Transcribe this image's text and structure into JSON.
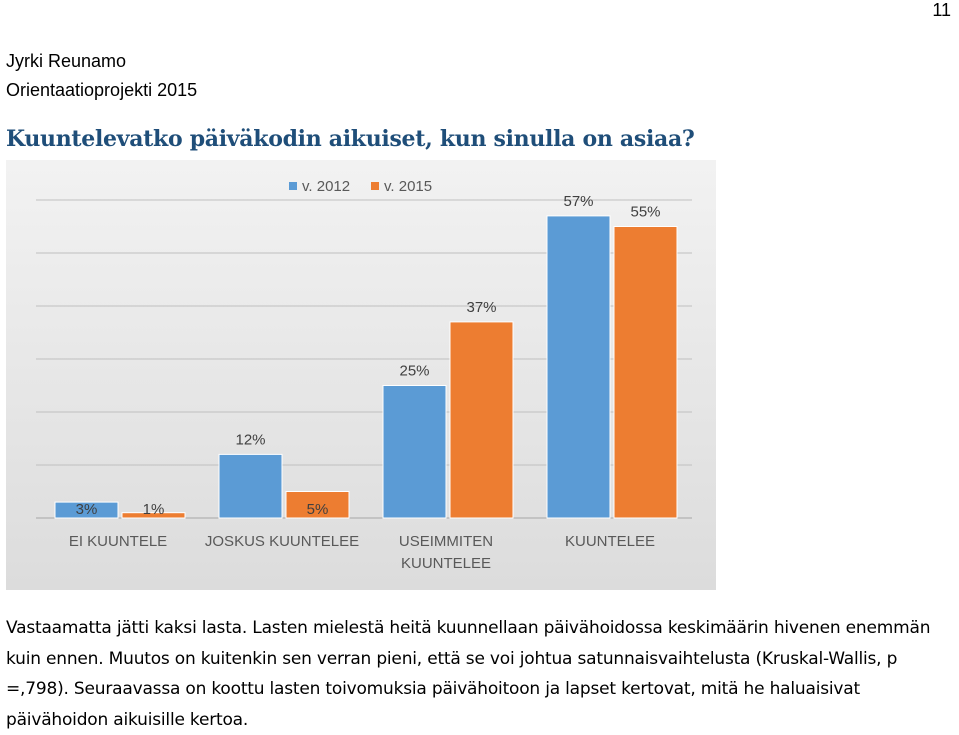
{
  "page": {
    "number": "11",
    "author": "Jyrki Reunamo",
    "project": "Orientaatioprojekti 2015"
  },
  "chart_data": {
    "type": "bar",
    "title": "Kuuntelevatko päiväkodin aikuiset, kun sinulla on asiaa?",
    "categories": [
      "EI KUUNTELE",
      "JOSKUS KUUNTELEE",
      "USEIMMITEN KUUNTELEE",
      "KUUNTELEE"
    ],
    "category_lines": [
      [
        "EI KUUNTELE"
      ],
      [
        "JOSKUS KUUNTELEE"
      ],
      [
        "USEIMMITEN",
        "KUUNTELEE"
      ],
      [
        "KUUNTELEE"
      ]
    ],
    "series": [
      {
        "name": "v. 2012",
        "values": [
          3,
          12,
          25,
          57
        ],
        "labels": [
          "3%",
          "12%",
          "25%",
          "57%"
        ],
        "color": "#5b9bd5"
      },
      {
        "name": "v. 2015",
        "values": [
          1,
          5,
          37,
          55
        ],
        "labels": [
          "1%",
          "5%",
          "37%",
          "55%"
        ],
        "color": "#ed7d31"
      }
    ],
    "ylim": [
      0,
      60
    ],
    "legend_position": "top",
    "grid": true
  },
  "body": {
    "paragraph": "Vastaamatta jätti kaksi lasta. Lasten mielestä heitä kuunnellaan päivähoidossa keskimäärin hivenen enemmän kuin ennen. Muutos on kuitenkin sen verran pieni, että se voi johtua satunnaisvaihtelusta (Kruskal-Wallis, p =,798). Seuraavassa on koottu lasten toivomuksia päivähoitoon ja lapset kertovat, mitä he haluaisivat päivähoidon aikuisille kertoa."
  }
}
